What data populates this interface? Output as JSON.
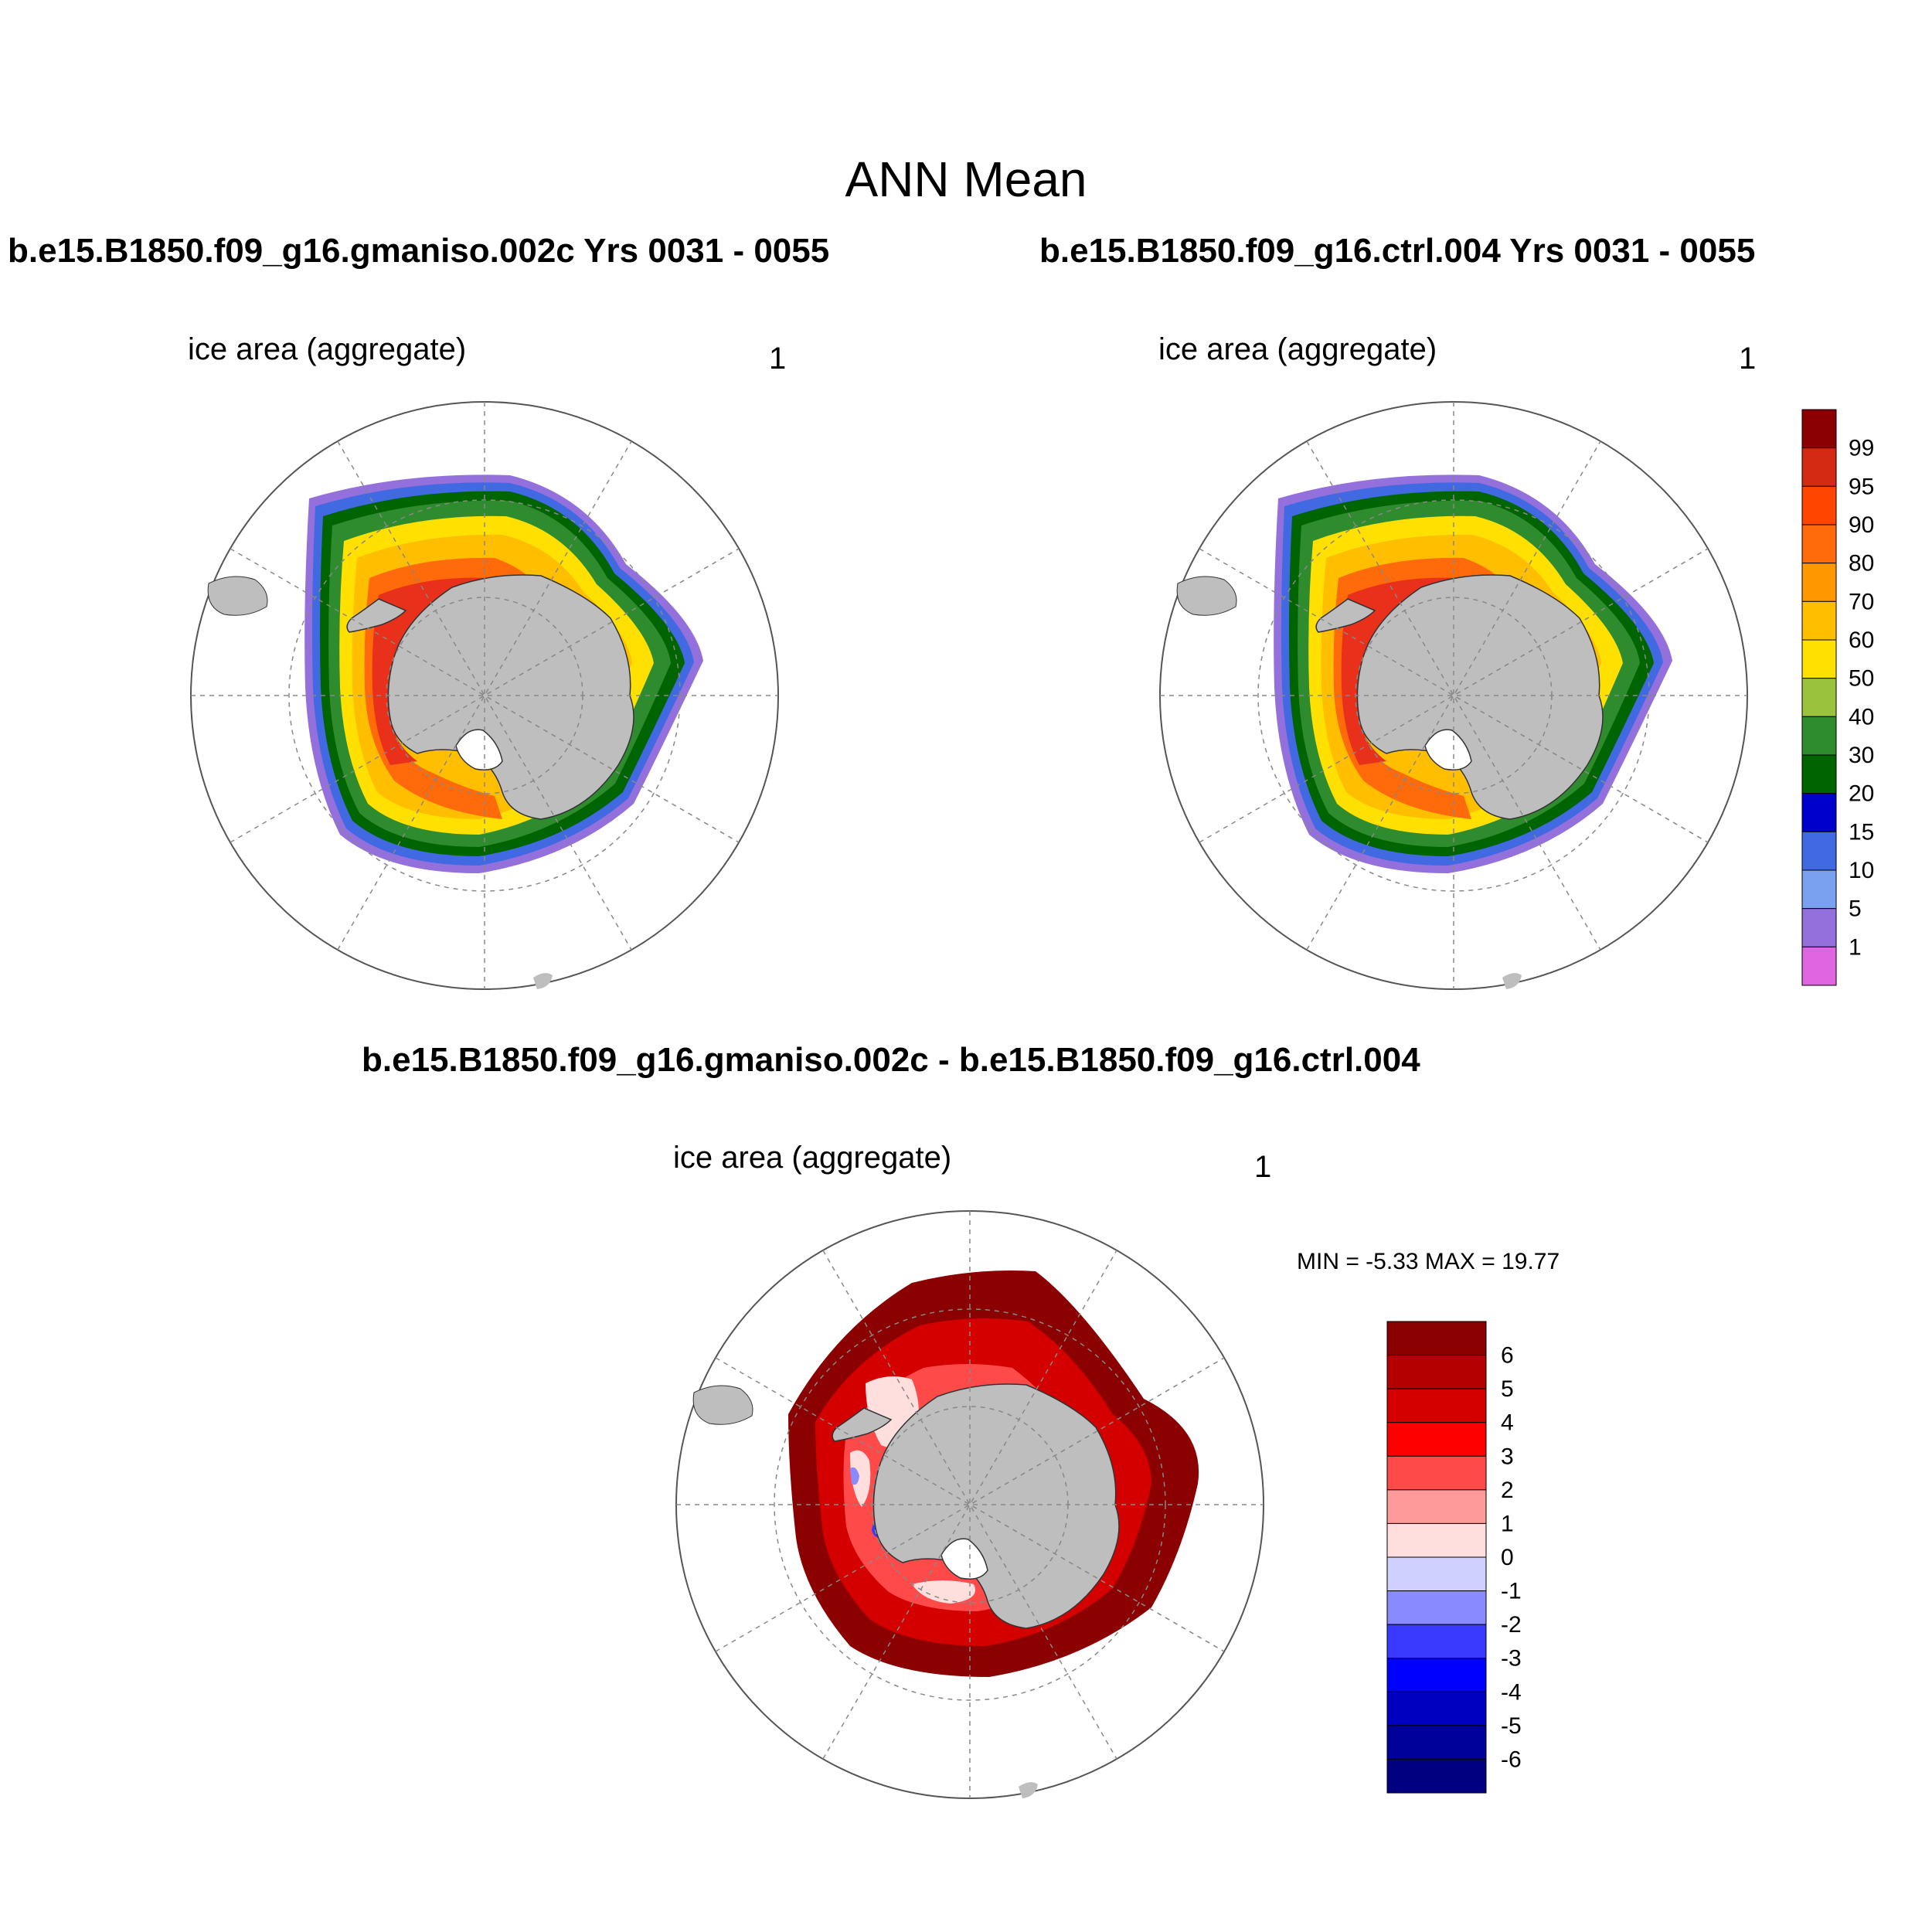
{
  "title": "ANN Mean",
  "panels": [
    {
      "id": "case1",
      "case_title": "b.e15.B1850.f09_g16.gmaniso.002c  Yrs 0031 - 0055",
      "var_label": "ice area  (aggregate)",
      "units": "1"
    },
    {
      "id": "case2",
      "case_title": "b.e15.B1850.f09_g16.ctrl.004  Yrs 0031 - 0055",
      "var_label": "ice area  (aggregate)",
      "units": "1"
    },
    {
      "id": "diff",
      "case_title": "b.e15.B1850.f09_g16.gmaniso.002c - b.e15.B1850.f09_g16.ctrl.004",
      "var_label": "ice area  (aggregate)",
      "units": "1",
      "minmax": "MIN =  -5.33 MAX =  19.77"
    }
  ],
  "colorbar_top": {
    "labels": [
      "99",
      "95",
      "90",
      "80",
      "70",
      "60",
      "50",
      "40",
      "30",
      "20",
      "15",
      "10",
      "5",
      "1"
    ],
    "colors": [
      "#8b0000",
      "#d42a14",
      "#ff4500",
      "#ff6a0a",
      "#ff9800",
      "#ffbf00",
      "#ffe000",
      "#9ac23c",
      "#2e8b2e",
      "#006400",
      "#0000cd",
      "#4169e1",
      "#7aa0f0",
      "#9370db",
      "#e066e0"
    ]
  },
  "colorbar_diff": {
    "labels": [
      "6",
      "5",
      "4",
      "3",
      "2",
      "1",
      "0",
      "-1",
      "-2",
      "-3",
      "-4",
      "-5",
      "-6"
    ],
    "colors": [
      "#8b0000",
      "#b40000",
      "#d40000",
      "#ff0000",
      "#ff4a4a",
      "#ff9a9a",
      "#ffdede",
      "#d0d0ff",
      "#8a8aff",
      "#3a3aff",
      "#0000ff",
      "#0000c0",
      "#00009a",
      "#000080"
    ]
  },
  "colors": {
    "land": "#bebebe",
    "grid": "#888888"
  }
}
